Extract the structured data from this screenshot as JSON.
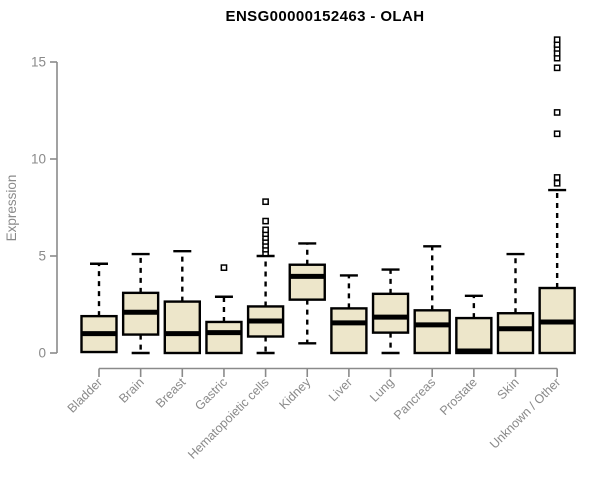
{
  "chart_data": {
    "type": "boxplot",
    "title": "ENSG00000152463 - OLAH",
    "ylabel": "Expression",
    "xlabel": "",
    "yticks": [
      0,
      5,
      10,
      15
    ],
    "ylim": [
      -0.9,
      16.5
    ],
    "grid": false,
    "legend": false,
    "categories": [
      "Bladder",
      "Brain",
      "Breast",
      "Gastric",
      "Hematopoietic cells",
      "Kidney",
      "Liver",
      "Lung",
      "Pancreas",
      "Prostate",
      "Skin",
      "Unknown / Other"
    ],
    "boxes": [
      {
        "name": "Bladder",
        "low": 0.05,
        "q1": 0.05,
        "median": 1.0,
        "q3": 1.9,
        "high": 4.6,
        "outliers": []
      },
      {
        "name": "Brain",
        "low": 0.0,
        "q1": 0.95,
        "median": 2.1,
        "q3": 3.1,
        "high": 5.1,
        "outliers": []
      },
      {
        "name": "Breast",
        "low": 0.0,
        "q1": 0.0,
        "median": 1.0,
        "q3": 2.65,
        "high": 5.25,
        "outliers": []
      },
      {
        "name": "Gastric",
        "low": 0.0,
        "q1": 0.0,
        "median": 1.05,
        "q3": 1.6,
        "high": 2.9,
        "outliers": [
          4.4
        ]
      },
      {
        "name": "Hematopoietic cells",
        "low": 0.0,
        "q1": 0.85,
        "median": 1.65,
        "q3": 2.4,
        "high": 5.0,
        "outliers": [
          5.15,
          5.35,
          5.55,
          5.75,
          5.95,
          6.15,
          6.35,
          6.8,
          7.8
        ]
      },
      {
        "name": "Kidney",
        "low": 0.5,
        "q1": 2.75,
        "median": 3.95,
        "q3": 4.55,
        "high": 5.65,
        "outliers": []
      },
      {
        "name": "Liver",
        "low": 0.0,
        "q1": 0.0,
        "median": 1.55,
        "q3": 2.3,
        "high": 4.0,
        "outliers": []
      },
      {
        "name": "Lung",
        "low": 0.0,
        "q1": 1.05,
        "median": 1.85,
        "q3": 3.05,
        "high": 4.3,
        "outliers": []
      },
      {
        "name": "Pancreas",
        "low": 0.0,
        "q1": 0.0,
        "median": 1.45,
        "q3": 2.2,
        "high": 5.5,
        "outliers": []
      },
      {
        "name": "Prostate",
        "low": 0.0,
        "q1": 0.0,
        "median": 0.1,
        "q3": 1.8,
        "high": 2.95,
        "outliers": []
      },
      {
        "name": "Skin",
        "low": 0.0,
        "q1": 0.0,
        "median": 1.25,
        "q3": 2.05,
        "high": 5.1,
        "outliers": []
      },
      {
        "name": "Unknown / Other",
        "low": 0.0,
        "q1": 0.0,
        "median": 1.6,
        "q3": 3.35,
        "high": 8.4,
        "outliers": [
          8.75,
          9.05,
          11.3,
          12.4,
          14.7,
          15.2,
          15.45,
          15.7,
          15.9,
          16.15
        ]
      }
    ],
    "colors": {
      "box_fill": "#EDE6CA",
      "box_stroke": "#000000",
      "median_color": "#000000",
      "whisker_color": "#000000",
      "outlier_fill": "#ffffff",
      "axis_color": "#8a8a8a",
      "title_color": "#000000",
      "background": "#ffffff"
    }
  }
}
